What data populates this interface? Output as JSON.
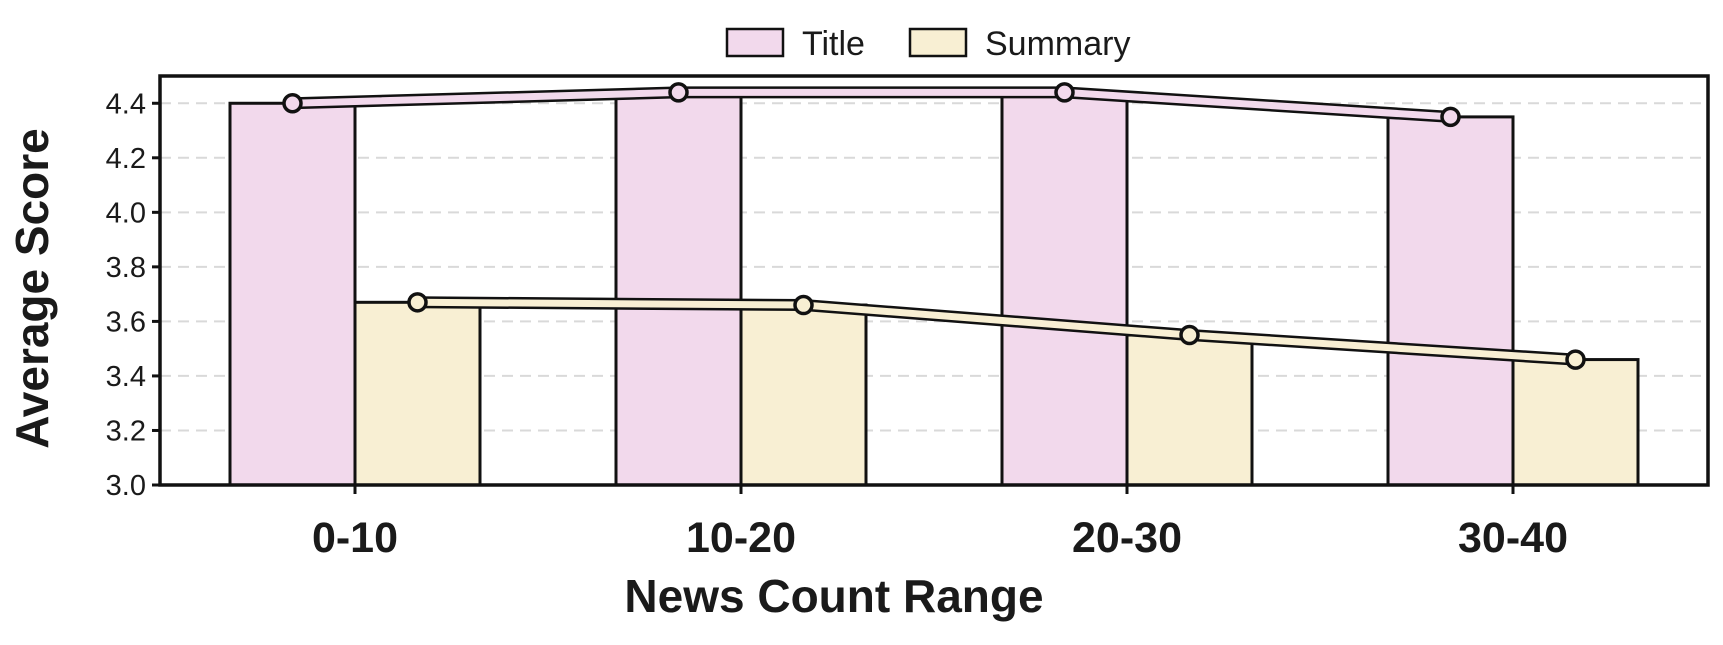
{
  "chart_data": {
    "type": "bar",
    "title": "",
    "xlabel": "News Count Range",
    "ylabel": "Average Score",
    "ylim": [
      3.0,
      4.5
    ],
    "yticks": [
      3.0,
      3.2,
      3.4,
      3.6,
      3.8,
      4.0,
      4.2,
      4.4
    ],
    "categories": [
      "0-10",
      "10-20",
      "20-30",
      "30-40"
    ],
    "grid": "horizontal dashed",
    "legend_position": "top-center",
    "series": [
      {
        "name": "Title",
        "values": [
          4.4,
          4.44,
          4.44,
          4.35
        ],
        "color": "#f2d9ec",
        "trend_line": true
      },
      {
        "name": "Summary",
        "values": [
          3.67,
          3.66,
          3.55,
          3.46
        ],
        "color": "#f8efd3",
        "trend_line": true
      }
    ]
  }
}
